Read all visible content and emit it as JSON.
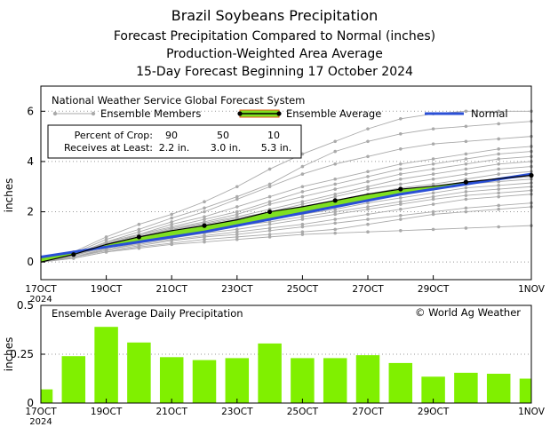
{
  "header": {
    "title": "Brazil Soybeans Precipitation",
    "subtitle1": "Forecast Precipitation Compared to Normal (inches)",
    "subtitle2": "Production-Weighted Area Average",
    "subtitle3": "15-Day Forecast Beginning 17 October 2024"
  },
  "colors": {
    "ensemble_member": "#aaaaaa",
    "ensemble_avg_line": "#000000",
    "fill_above_normal": "#7fe020",
    "normal_line": "#2a4fd6",
    "bar": "#80f000"
  },
  "chart_data": [
    {
      "type": "line",
      "title": "National Weather Service Global Forecast System",
      "ylabel": "inches",
      "xlabel": "",
      "x_ticks": [
        "17OCT",
        "19OCT",
        "21OCT",
        "23OCT",
        "25OCT",
        "27OCT",
        "29OCT",
        "1NOV"
      ],
      "x_tick_days": [
        0,
        2,
        4,
        6,
        8,
        10,
        12,
        15
      ],
      "x_year_label": "2024",
      "xlim": [
        0,
        15
      ],
      "ylim": [
        -0.7,
        7
      ],
      "y_ticks": [
        0,
        2,
        4,
        6
      ],
      "grid": true,
      "legend": [
        {
          "key": "members",
          "label": "Ensemble Members"
        },
        {
          "key": "average",
          "label": "Ensemble Average"
        },
        {
          "key": "normal",
          "label": "Normal"
        }
      ],
      "crop_table": {
        "row1_label": "Percent of Crop:",
        "row1_values": [
          "90",
          "50",
          "10"
        ],
        "row2_label": "Receives at Least:",
        "row2_values": [
          "2.2 in.",
          "3.0 in.",
          "5.3 in."
        ]
      },
      "days": [
        0,
        1,
        2,
        3,
        4,
        5,
        6,
        7,
        8,
        9,
        10,
        11,
        12,
        13,
        14,
        15
      ],
      "ensemble_average": [
        0.0,
        0.3,
        0.7,
        1.0,
        1.25,
        1.45,
        1.68,
        2.0,
        2.2,
        2.45,
        2.7,
        2.9,
        3.02,
        3.18,
        3.32,
        3.45
      ],
      "normal": [
        0.2,
        0.4,
        0.6,
        0.8,
        1.0,
        1.2,
        1.45,
        1.7,
        1.95,
        2.2,
        2.45,
        2.7,
        2.9,
        3.1,
        3.3,
        3.5
      ],
      "ensemble_members": [
        [
          0.0,
          0.4,
          1.0,
          1.5,
          1.9,
          2.4,
          3.0,
          3.7,
          4.3,
          4.8,
          5.3,
          5.7,
          5.9,
          6.0,
          6.0,
          6.0
        ],
        [
          0.0,
          0.35,
          0.9,
          1.3,
          1.75,
          2.15,
          2.6,
          3.1,
          3.8,
          4.4,
          4.8,
          5.1,
          5.3,
          5.4,
          5.5,
          5.6
        ],
        [
          0.0,
          0.3,
          0.8,
          1.2,
          1.6,
          2.0,
          2.5,
          3.0,
          3.5,
          3.9,
          4.2,
          4.5,
          4.7,
          4.8,
          4.9,
          5.0
        ],
        [
          0.0,
          0.3,
          0.8,
          1.1,
          1.5,
          1.8,
          2.2,
          2.6,
          3.0,
          3.3,
          3.6,
          3.9,
          4.1,
          4.3,
          4.5,
          4.6
        ],
        [
          0.0,
          0.3,
          0.7,
          1.1,
          1.4,
          1.7,
          2.0,
          2.4,
          2.8,
          3.1,
          3.4,
          3.7,
          3.9,
          4.1,
          4.3,
          4.4
        ],
        [
          0.0,
          0.3,
          0.75,
          1.05,
          1.35,
          1.6,
          1.9,
          2.3,
          2.6,
          2.9,
          3.2,
          3.5,
          3.7,
          3.9,
          4.1,
          4.2
        ],
        [
          0.0,
          0.25,
          0.7,
          1.0,
          1.3,
          1.55,
          1.8,
          2.1,
          2.4,
          2.7,
          3.0,
          3.3,
          3.5,
          3.7,
          3.9,
          4.0
        ],
        [
          0.0,
          0.3,
          0.7,
          1.0,
          1.3,
          1.5,
          1.75,
          2.0,
          2.3,
          2.6,
          2.9,
          3.1,
          3.3,
          3.5,
          3.7,
          3.8
        ],
        [
          0.0,
          0.25,
          0.65,
          0.95,
          1.2,
          1.45,
          1.7,
          1.95,
          2.2,
          2.45,
          2.7,
          2.95,
          3.1,
          3.3,
          3.5,
          3.6
        ],
        [
          0.0,
          0.3,
          0.7,
          1.0,
          1.25,
          1.4,
          1.6,
          1.85,
          2.1,
          2.35,
          2.6,
          2.8,
          3.0,
          3.2,
          3.3,
          3.4
        ],
        [
          0.0,
          0.25,
          0.6,
          0.9,
          1.15,
          1.35,
          1.55,
          1.8,
          2.0,
          2.25,
          2.5,
          2.7,
          2.9,
          3.1,
          3.2,
          3.3
        ],
        [
          0.0,
          0.25,
          0.6,
          0.85,
          1.1,
          1.3,
          1.5,
          1.7,
          1.9,
          2.1,
          2.35,
          2.55,
          2.75,
          2.95,
          3.05,
          3.15
        ],
        [
          0.0,
          0.2,
          0.55,
          0.8,
          1.05,
          1.25,
          1.45,
          1.6,
          1.8,
          2.0,
          2.2,
          2.4,
          2.6,
          2.8,
          2.9,
          3.0
        ],
        [
          0.0,
          0.2,
          0.5,
          0.75,
          0.95,
          1.15,
          1.3,
          1.5,
          1.7,
          1.9,
          2.1,
          2.3,
          2.5,
          2.65,
          2.75,
          2.85
        ],
        [
          0.0,
          0.2,
          0.5,
          0.7,
          0.9,
          1.05,
          1.2,
          1.35,
          1.5,
          1.7,
          1.9,
          2.1,
          2.3,
          2.5,
          2.6,
          2.7
        ],
        [
          0.0,
          0.2,
          0.45,
          0.65,
          0.85,
          1.0,
          1.1,
          1.25,
          1.4,
          1.55,
          1.7,
          1.85,
          2.0,
          2.15,
          2.25,
          2.35
        ],
        [
          0.0,
          0.15,
          0.4,
          0.6,
          0.75,
          0.9,
          1.0,
          1.1,
          1.2,
          1.3,
          1.5,
          1.7,
          1.9,
          2.0,
          2.1,
          2.2
        ],
        [
          0.0,
          0.15,
          0.4,
          0.55,
          0.7,
          0.8,
          0.9,
          1.0,
          1.1,
          1.15,
          1.2,
          1.25,
          1.3,
          1.35,
          1.4,
          1.45
        ]
      ]
    },
    {
      "type": "bar",
      "title": "Ensemble Average Daily Precipitation",
      "credit": "© World Ag Weather",
      "ylabel": "inches",
      "xlabel": "",
      "x_ticks": [
        "17OCT",
        "19OCT",
        "21OCT",
        "23OCT",
        "25OCT",
        "27OCT",
        "29OCT",
        "1NOV"
      ],
      "x_tick_days": [
        0,
        2,
        4,
        6,
        8,
        10,
        12,
        15
      ],
      "x_year_label": "2024",
      "xlim": [
        0,
        15
      ],
      "ylim": [
        0,
        0.5
      ],
      "y_ticks": [
        0,
        0.25,
        0.5
      ],
      "y_tick_labels": [
        "0",
        "0.25",
        "0.5"
      ],
      "days": [
        0,
        1,
        2,
        3,
        4,
        5,
        6,
        7,
        8,
        9,
        10,
        11,
        12,
        13,
        14,
        15
      ],
      "values": [
        0.07,
        0.24,
        0.39,
        0.31,
        0.235,
        0.22,
        0.23,
        0.305,
        0.23,
        0.23,
        0.245,
        0.205,
        0.135,
        0.155,
        0.15,
        0.125
      ]
    }
  ]
}
